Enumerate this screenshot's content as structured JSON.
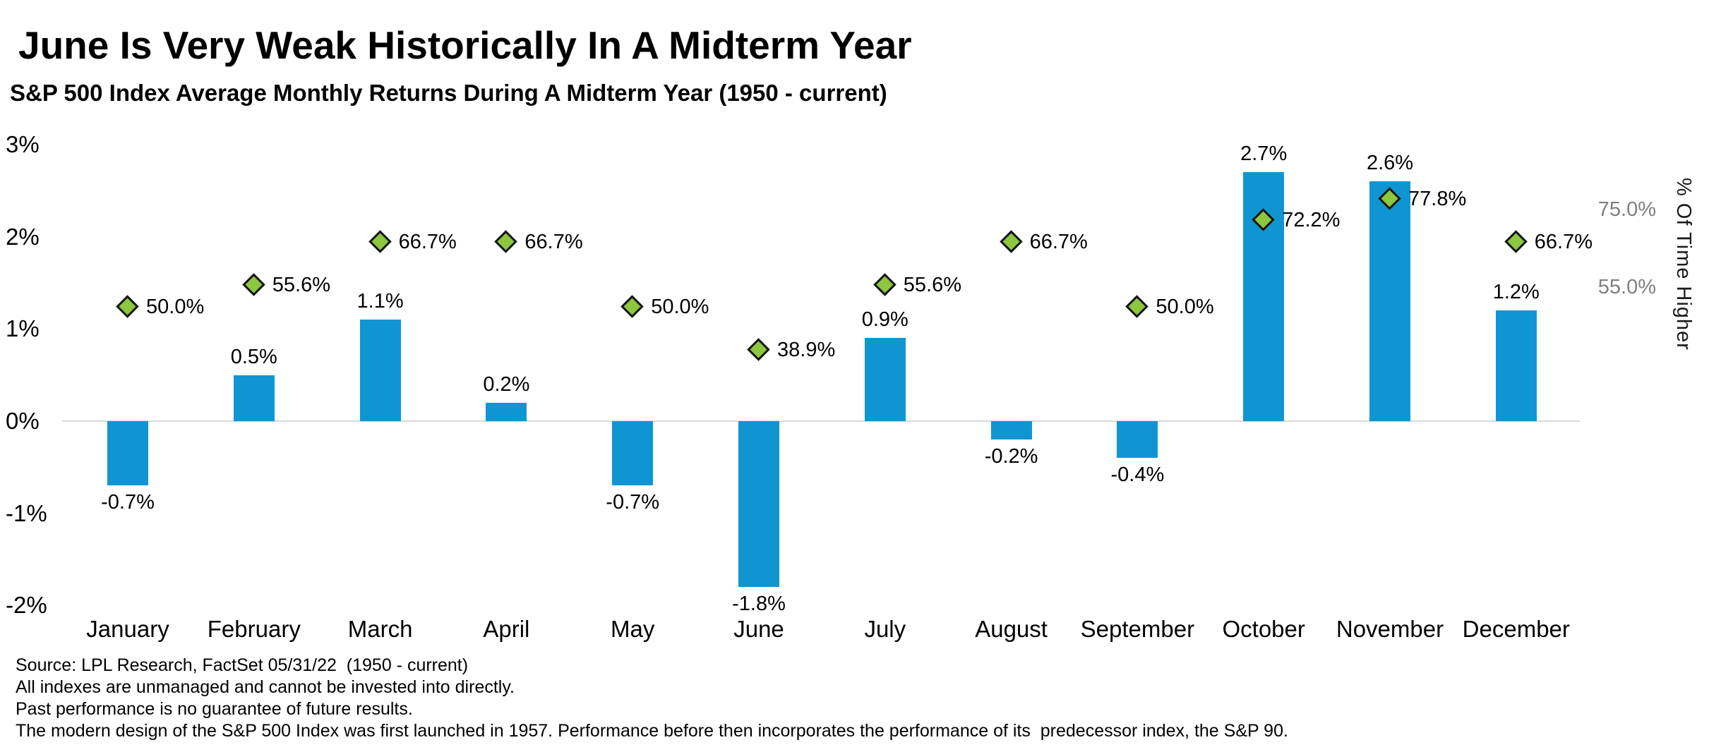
{
  "header": {
    "title": "June Is Very Weak Historically In A Midterm Year",
    "subtitle": "S&P 500 Index Average Monthly Returns During A Midterm Year (1950 - current)"
  },
  "chart_data": {
    "type": "bar",
    "title": "June Is Very Weak Historically In A Midterm Year",
    "subtitle": "S&P 500 Index Average Monthly Returns During A Midterm Year (1950 - current)",
    "categories": [
      "January",
      "February",
      "March",
      "April",
      "May",
      "June",
      "July",
      "August",
      "September",
      "October",
      "November",
      "December"
    ],
    "series": [
      {
        "name": "S&P 500 average monthly return",
        "type": "bar",
        "axis": "left",
        "color": "#1095d3",
        "values": [
          -0.7,
          0.5,
          1.1,
          0.2,
          -0.7,
          -1.8,
          0.9,
          -0.2,
          -0.4,
          2.7,
          2.6,
          1.2
        ],
        "labels": [
          "-0.7%",
          "0.5%",
          "1.1%",
          "0.2%",
          "-0.7%",
          "-1.8%",
          "0.9%",
          "-0.2%",
          "-0.4%",
          "2.7%",
          "2.6%",
          "1.2%"
        ]
      },
      {
        "name": "% Of Time Higher",
        "type": "scatter",
        "marker": "diamond",
        "axis": "right",
        "color": "#8dc63f",
        "marker_border": "#151515",
        "values": [
          50.0,
          55.6,
          66.7,
          66.7,
          50.0,
          38.9,
          55.6,
          66.7,
          50.0,
          72.2,
          77.8,
          66.7
        ],
        "labels": [
          "50.0%",
          "55.6%",
          "66.7%",
          "66.7%",
          "50.0%",
          "38.9%",
          "55.6%",
          "66.7%",
          "50.0%",
          "72.2%",
          "77.8%",
          "66.7%"
        ]
      }
    ],
    "left_axis": {
      "ticks": [
        "3%",
        "2%",
        "1%",
        "0%",
        "-1%",
        "-2%"
      ],
      "tick_values": [
        3,
        2,
        1,
        0,
        -1,
        -2
      ],
      "range": [
        -2,
        3
      ]
    },
    "right_axis": {
      "title": "% Of Time Higher",
      "ticks": [
        "75.0%",
        "55.0%"
      ],
      "tick_values": [
        75.0,
        55.0
      ],
      "color": "#7f7f7f"
    },
    "zero_line_color": "#d9d9d9",
    "grid": false,
    "legend": "none"
  },
  "footer": {
    "lines": [
      "Source: LPL Research, FactSet 05/31/22  (1950 - current)",
      "All indexes are unmanaged and cannot be invested into directly.",
      "Past performance is no guarantee of future results.",
      "The modern design of the S&P 500 Index was first launched in 1957. Performance before then incorporates the performance of its  predecessor index, the S&P 90."
    ]
  }
}
